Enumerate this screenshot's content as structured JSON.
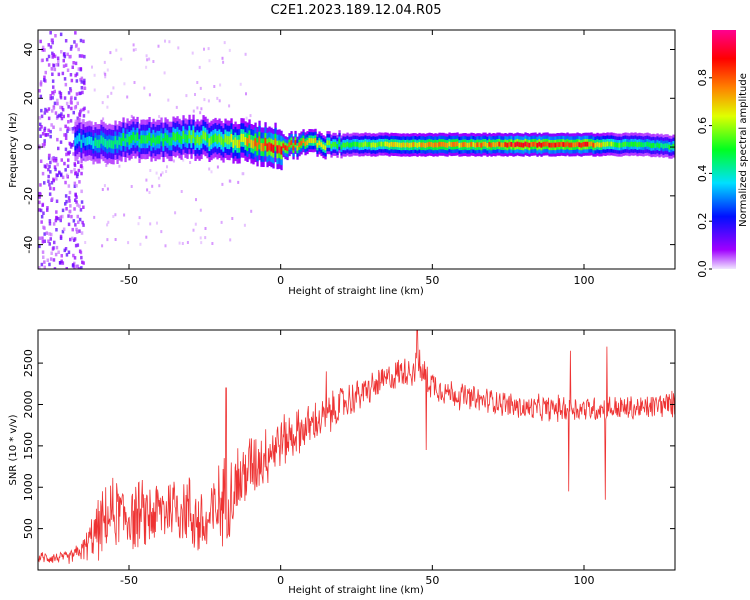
{
  "title": "C2E1.2023.189.12.04.R05",
  "chart_data": [
    {
      "type": "heatmap",
      "title": "",
      "xlabel": "Height of straight line (km)",
      "ylabel": "Frequency (Hz)",
      "xlim": [
        -80,
        130
      ],
      "ylim": [
        -50,
        48
      ],
      "xticks": [
        -50,
        0,
        50,
        100
      ],
      "yticks": [
        -40,
        -20,
        0,
        20,
        40
      ],
      "grid": false,
      "colormap": "rainbow (purple-blue-cyan-green-yellow-red-magenta)",
      "colorbar": {
        "label": "Normalized spectral amplitude",
        "range": [
          0.0,
          1.0
        ],
        "ticks": [
          0.0,
          0.2,
          0.4,
          0.6,
          0.8
        ]
      },
      "ridge": {
        "description": "narrow band of high normalized amplitude near 0-5 Hz",
        "x": [
          -68,
          -60,
          -50,
          -40,
          -30,
          -20,
          -10,
          -5,
          0,
          5,
          10,
          15,
          20,
          30,
          40,
          50,
          60,
          70,
          80,
          90,
          100,
          105,
          110,
          120,
          130
        ],
        "frequency_hz": [
          3,
          2,
          3,
          3,
          4,
          3,
          2,
          1,
          0,
          1,
          2,
          1,
          1,
          1,
          1,
          1,
          1,
          1,
          1,
          1,
          1,
          1,
          1,
          1,
          0
        ],
        "amplitude": [
          0.35,
          0.45,
          0.5,
          0.5,
          0.55,
          0.6,
          0.75,
          0.85,
          0.9,
          0.8,
          0.7,
          0.65,
          0.55,
          0.6,
          0.7,
          0.75,
          0.75,
          0.8,
          0.9,
          0.85,
          0.9,
          0.75,
          0.55,
          0.5,
          0.5
        ]
      },
      "noise_region": {
        "x": [
          -80,
          -65
        ],
        "frequency_hz": [
          -50,
          48
        ]
      }
    },
    {
      "type": "line",
      "title": "",
      "xlabel": "Height of straight line (km)",
      "ylabel": "SNR (10 * v/v)",
      "xlim": [
        -80,
        130
      ],
      "ylim": [
        0,
        2900
      ],
      "xticks": [
        -50,
        0,
        50,
        100
      ],
      "yticks": [
        500,
        1000,
        1500,
        2000,
        2500
      ],
      "grid": false,
      "series": [
        {
          "color": "#ee3333",
          "x": [
            -80,
            -70,
            -65,
            -60,
            -55,
            -50,
            -45,
            -40,
            -35,
            -30,
            -25,
            -20,
            -15,
            -10,
            -5,
            0,
            5,
            10,
            15,
            20,
            25,
            30,
            35,
            40,
            45,
            50,
            55,
            60,
            65,
            70,
            75,
            80,
            85,
            90,
            95,
            100,
            105,
            110,
            115,
            120,
            125,
            130
          ],
          "values": [
            150,
            150,
            250,
            500,
            700,
            650,
            650,
            700,
            800,
            700,
            500,
            800,
            1000,
            1250,
            1400,
            1550,
            1650,
            1750,
            1850,
            2000,
            2100,
            2200,
            2300,
            2400,
            2450,
            2250,
            2150,
            2100,
            2050,
            2050,
            2000,
            1950,
            1950,
            1950,
            1950,
            1950,
            1950,
            1950,
            1950,
            1950,
            2000,
            2000
          ],
          "noise_amplitude": [
            80,
            80,
            150,
            400,
            450,
            450,
            450,
            450,
            450,
            500,
            500,
            550,
            550,
            450,
            400,
            350,
            300,
            280,
            260,
            250,
            220,
            200,
            200,
            200,
            250,
            200,
            180,
            180,
            170,
            170,
            170,
            170,
            170,
            170,
            170,
            170,
            170,
            170,
            170,
            170,
            170,
            170
          ],
          "spikes": [
            {
              "x": -18,
              "value": 2200
            },
            {
              "x": 15,
              "value": 2400
            },
            {
              "x": 45,
              "value": 2950
            },
            {
              "x": 48,
              "value": 1450
            },
            {
              "x": 95,
              "value": 950
            },
            {
              "x": 95.5,
              "value": 2650
            },
            {
              "x": 107,
              "value": 850
            },
            {
              "x": 107.5,
              "value": 2700
            }
          ]
        }
      ]
    }
  ]
}
